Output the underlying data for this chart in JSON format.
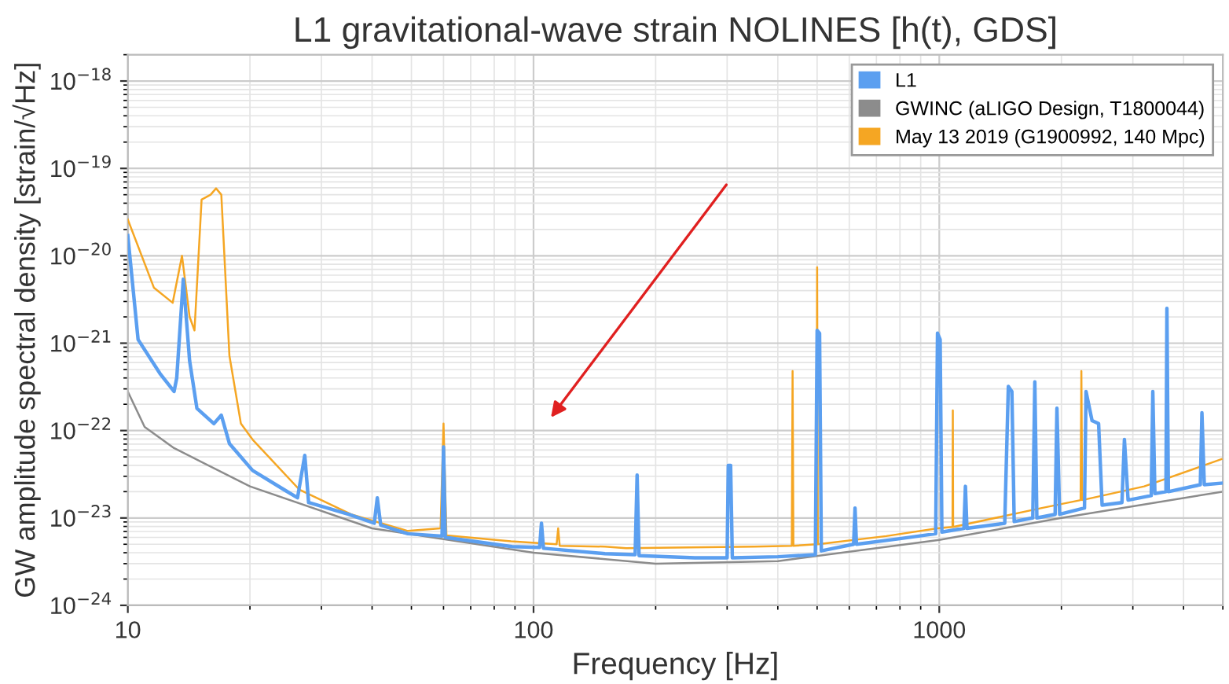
{
  "chart_data": {
    "type": "line",
    "title": "L1 gravitational-wave strain NOLINES [h(t), GDS]",
    "xlabel": "Frequency [Hz]",
    "ylabel": "GW amplitude spectral density [strain/√Hz]",
    "log": "xy",
    "xlim": [
      10,
      5000
    ],
    "ylim": [
      1e-24,
      2e-18
    ],
    "xticks": [
      10,
      100,
      1000
    ],
    "yticks": [
      {
        "value": 1e-24,
        "label": "10$^{−24}$"
      },
      {
        "value": 1e-23,
        "label": "10$^{−23}$"
      },
      {
        "value": 1e-22,
        "label": "10$^{−22}$"
      },
      {
        "value": 1e-21,
        "label": "10$^{−21}$"
      },
      {
        "value": 1e-20,
        "label": "10$^{−20}$"
      },
      {
        "value": 1e-19,
        "label": "10$^{−19}$"
      },
      {
        "value": 1e-18,
        "label": "10$^{−18}$"
      }
    ],
    "grid": true,
    "legend": "top right",
    "series": [
      {
        "name": "L1",
        "color": "#5b9ff0",
        "x": [
          10,
          10.6,
          12,
          13.0,
          13.2,
          13.7,
          14.2,
          14.8,
          16.3,
          17.0,
          17.8,
          20.3,
          24.3,
          26.2,
          27.3,
          27.9,
          35,
          40.5,
          41.2,
          42,
          49,
          59.5,
          60,
          60.6,
          88.5,
          103.5,
          104.6,
          105.8,
          150,
          178,
          180,
          182,
          250,
          300,
          302,
          306,
          309,
          400,
          495,
          500,
          507,
          512,
          615,
          620,
          625,
          800,
          980,
          990,
          1005,
          1015,
          1150,
          1160,
          1170,
          1450,
          1480,
          1510,
          1530,
          1700,
          1720,
          1740,
          1930,
          1950,
          1980,
          2280,
          2300,
          2380,
          2470,
          2520,
          2820,
          2860,
          2920,
          3330,
          3360,
          3400,
          3620,
          3640,
          3670,
          4400,
          4440,
          4500,
          4960
        ],
        "values": [
          1.7e-20,
          1.1e-21,
          4.5e-22,
          2.8e-22,
          4e-22,
          5.4e-21,
          6.3e-22,
          1.8e-22,
          1.2e-22,
          1.5e-22,
          7.1e-23,
          3.5e-23,
          2.1e-23,
          1.7e-23,
          5.2e-23,
          1.5e-23,
          1.1e-23,
          8.7e-24,
          1.7e-23,
          8.3e-24,
          6.6e-24,
          6.2e-24,
          6.5e-23,
          6e-24,
          4.7e-24,
          4.6e-24,
          8.7e-24,
          4.5e-24,
          3.9e-24,
          3.8e-24,
          3.1e-23,
          3.7e-24,
          3.5e-24,
          3.5e-24,
          4e-23,
          4e-23,
          3.5e-24,
          3.6e-24,
          3.8e-24,
          1.4e-21,
          1.3e-21,
          4.2e-24,
          5e-24,
          1.3e-23,
          5e-24,
          5.8e-24,
          6.6e-24,
          1.3e-21,
          1.1e-21,
          6.9e-24,
          7.6e-24,
          2.3e-23,
          7.6e-24,
          8.7e-24,
          3.2e-22,
          2.8e-22,
          9.1e-24,
          1e-23,
          3.6e-22,
          1e-23,
          1.1e-23,
          1.8e-22,
          1.1e-23,
          1.3e-23,
          2.8e-22,
          1.3e-22,
          1.2e-22,
          1.4e-23,
          1.5e-23,
          7.9e-23,
          1.6e-23,
          1.8e-23,
          2.8e-22,
          1.9e-23,
          2e-23,
          2.5e-21,
          2e-23,
          2.4e-23,
          1.6e-22,
          2.4e-23,
          2.5e-23
        ]
      },
      {
        "name": "GWINC (aLIGO Design, T1800044)",
        "color": "#8c8c8c",
        "x": [
          10,
          11,
          13,
          20,
          40,
          100,
          200,
          400,
          1000,
          2000,
          5000
        ],
        "values": [
          2.8e-22,
          1.1e-22,
          6.3e-23,
          2.3e-23,
          7.6e-24,
          4e-24,
          3e-24,
          3.2e-24,
          5.6e-24,
          1e-23,
          2e-23
        ]
      },
      {
        "name": "May 13 2019 (G1900992, 140 Mpc)",
        "color": "#f5a623",
        "x": [
          10,
          11.6,
          12.9,
          13.6,
          14.2,
          14.6,
          15.2,
          16.0,
          16.5,
          17.0,
          17.8,
          19.0,
          20.3,
          26.5,
          35.5,
          49,
          59,
          60,
          61,
          88,
          114,
          115,
          116,
          150,
          169,
          350,
          433,
          435,
          437,
          498,
          500,
          502,
          740,
          990,
          1078,
          1080,
          1082,
          1790,
          2230,
          2240,
          2250,
          3200,
          4960
        ],
        "values": [
          2.6e-20,
          4.3e-21,
          2.9e-21,
          1e-20,
          2e-21,
          1.4e-21,
          4.4e-20,
          5e-20,
          5.9e-20,
          5e-20,
          7.2e-22,
          1.2e-22,
          7.9e-23,
          2.1e-23,
          1.1e-23,
          7.1e-24,
          7.6e-24,
          1.2e-22,
          6.3e-24,
          5.4e-24,
          5e-24,
          7.6e-24,
          4.8e-24,
          4.7e-24,
          4.5e-24,
          4.7e-24,
          4.8e-24,
          4.8e-22,
          4.8e-24,
          5e-24,
          7.4e-21,
          5e-24,
          6.2e-24,
          7.6e-24,
          7.9e-24,
          1.7e-22,
          7.9e-24,
          1.3e-23,
          1.6e-23,
          4.8e-22,
          1.6e-23,
          2.3e-23,
          4.7e-23
        ]
      }
    ]
  }
}
